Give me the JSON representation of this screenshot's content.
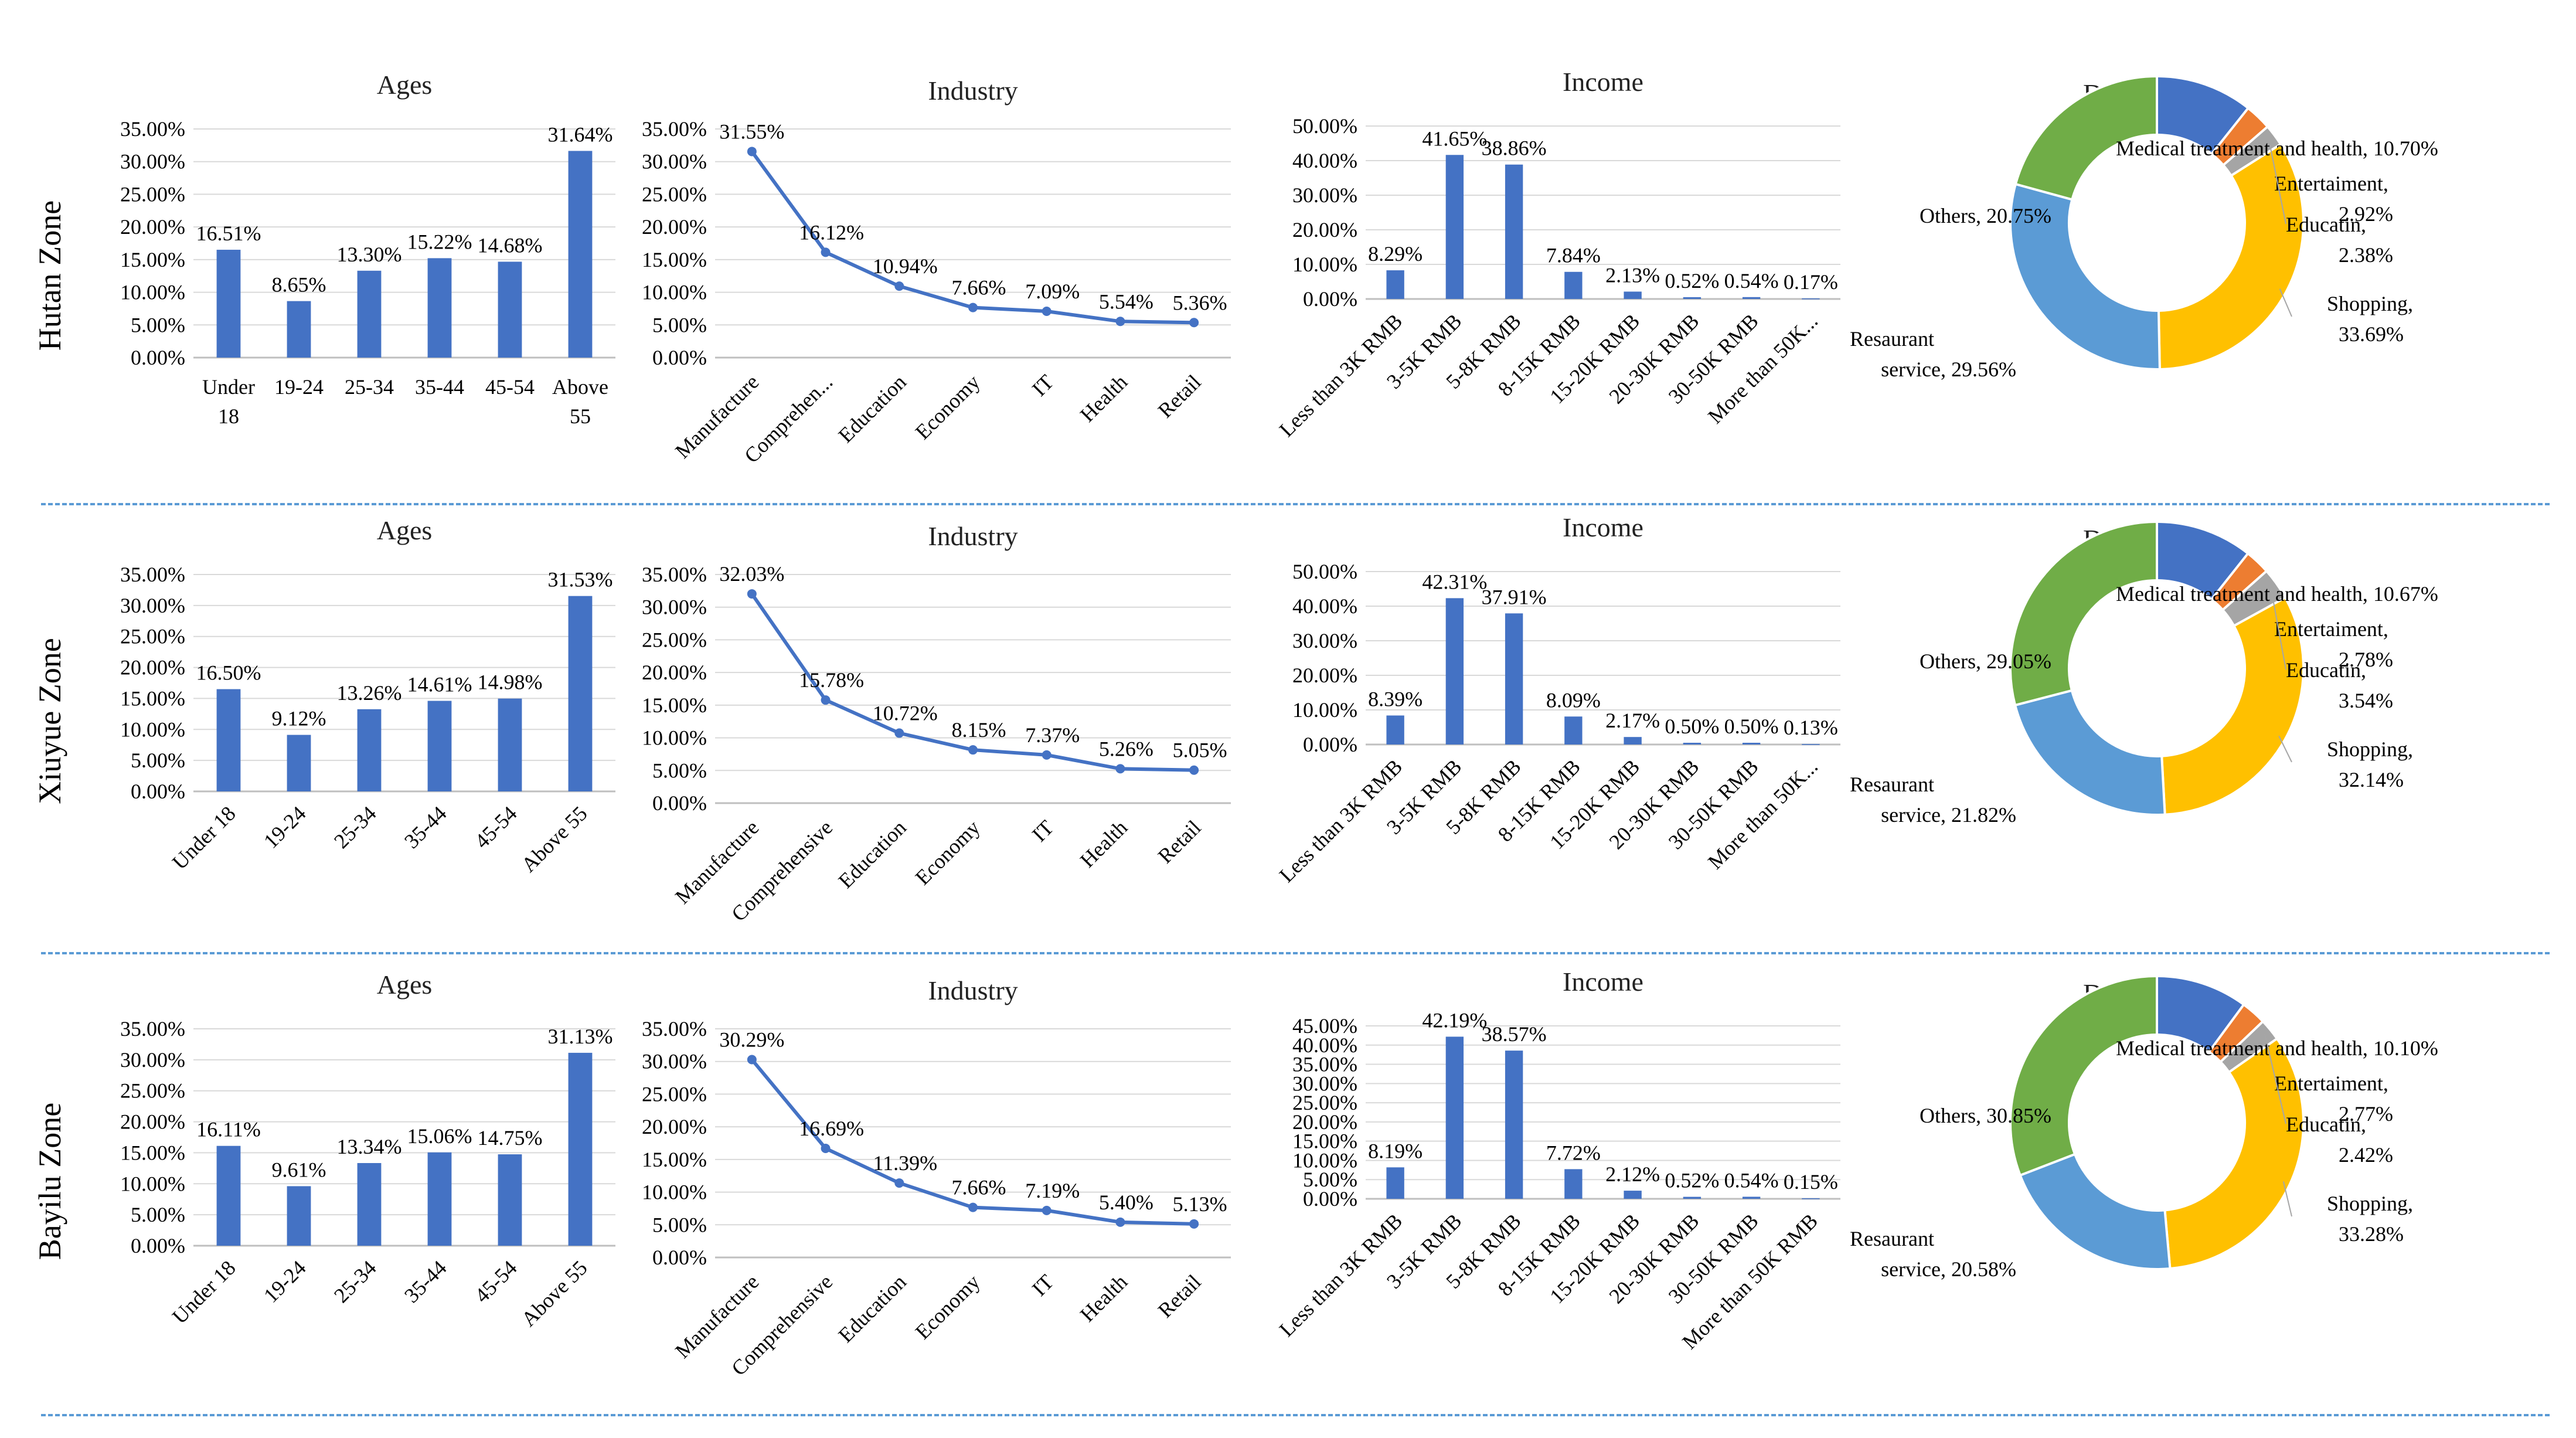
{
  "colors": {
    "bar": "#4472c4",
    "line": "#4472c4",
    "grid": "#d9d9d9",
    "axis": "#bfbfbf",
    "divider": "#5b9bd5",
    "pie": [
      "#4472c4",
      "#ed7d31",
      "#a5a5a5",
      "#ffc000",
      "#5b9bd5",
      "#70ad47"
    ]
  },
  "rows": [
    {
      "zone": "Hutan Zone",
      "charts": {
        "ages": {
          "type": "bar",
          "title": "Ages",
          "categories": [
            "Under 18",
            "19-24",
            "25-34",
            "35-44",
            "45-54",
            "Above 55"
          ],
          "values": [
            16.51,
            8.65,
            13.3,
            15.22,
            14.68,
            31.64
          ],
          "labels": [
            "16.51%",
            "8.65%",
            "13.30%",
            "15.22%",
            "14.68%",
            "31.64%"
          ],
          "ylim": [
            0,
            35
          ],
          "yticks": [
            "0.00%",
            "5.00%",
            "10.00%",
            "15.00%",
            "20.00%",
            "25.00%",
            "30.00%",
            "35.00%"
          ],
          "tick_style": "wrapped"
        },
        "industry": {
          "type": "line",
          "title": "Industry",
          "categories": [
            "Manufacture",
            "Comprehen...",
            "Education",
            "Economy",
            "IT",
            "Health",
            "Retail"
          ],
          "values": [
            31.55,
            16.12,
            10.94,
            7.66,
            7.09,
            5.54,
            5.36
          ],
          "labels": [
            "31.55%",
            "16.12%",
            "10.94%",
            "7.66%",
            "7.09%",
            "5.54%",
            "5.36%"
          ],
          "ylim": [
            0,
            35
          ],
          "yticks": [
            "0.00%",
            "5.00%",
            "10.00%",
            "15.00%",
            "20.00%",
            "25.00%",
            "30.00%",
            "35.00%"
          ]
        },
        "income": {
          "type": "bar",
          "title": "Income",
          "categories": [
            "Less than 3K RMB",
            "3-5K RMB",
            "5-8K RMB",
            "8-15K RMB",
            "15-20K RMB",
            "20-30K RMB",
            "30-50K RMB",
            "More than 50K..."
          ],
          "values": [
            8.29,
            41.65,
            38.86,
            7.84,
            2.13,
            0.52,
            0.54,
            0.17
          ],
          "labels": [
            "8.29%",
            "41.65%",
            "38.86%",
            "7.84%",
            "2.13%",
            "0.52%",
            "0.54%",
            "0.17%"
          ],
          "ylim": [
            0,
            50
          ],
          "yticks": [
            "0.00%",
            "10.00%",
            "20.00%",
            "30.00%",
            "40.00%",
            "50.00%"
          ]
        },
        "destination": {
          "type": "pie",
          "title": "Destination",
          "slices": [
            {
              "name": "Medical treatment and health",
              "value": 10.7,
              "label": "Medical treatment and health, 10.70%"
            },
            {
              "name": "Entertaiment",
              "value": 2.92,
              "label_line1": "Entertaiment,",
              "label_line2": "2.92%"
            },
            {
              "name": "Educatin",
              "value": 2.38,
              "label_line1": "Educatin,",
              "label_line2": "2.38%"
            },
            {
              "name": "Shopping",
              "value": 33.69,
              "label_line1": "Shopping,",
              "label_line2": "33.69%"
            },
            {
              "name": "Resaurant service",
              "value": 29.56,
              "label_line1": "Resaurant",
              "label_line2": "service, 29.56%"
            },
            {
              "name": "Others",
              "value": 20.75,
              "label": "Others, 20.75%"
            }
          ]
        }
      }
    },
    {
      "zone": "Xiuyue Zone",
      "charts": {
        "ages": {
          "type": "bar",
          "title": "Ages",
          "categories": [
            "Under 18",
            "19-24",
            "25-34",
            "35-44",
            "45-54",
            "Above 55"
          ],
          "values": [
            16.5,
            9.12,
            13.26,
            14.61,
            14.98,
            31.53
          ],
          "labels": [
            "16.50%",
            "9.12%",
            "13.26%",
            "14.61%",
            "14.98%",
            "31.53%"
          ],
          "ylim": [
            0,
            35
          ],
          "yticks": [
            "0.00%",
            "5.00%",
            "10.00%",
            "15.00%",
            "20.00%",
            "25.00%",
            "30.00%",
            "35.00%"
          ],
          "tick_style": "rotated"
        },
        "industry": {
          "type": "line",
          "title": "Industry",
          "categories": [
            "Manufacture",
            "Comprehensive",
            "Education",
            "Economy",
            "IT",
            "Health",
            "Retail"
          ],
          "values": [
            32.03,
            15.78,
            10.72,
            8.15,
            7.37,
            5.26,
            5.05
          ],
          "labels": [
            "32.03%",
            "15.78%",
            "10.72%",
            "8.15%",
            "7.37%",
            "5.26%",
            "5.05%"
          ],
          "ylim": [
            0,
            35
          ],
          "yticks": [
            "0.00%",
            "5.00%",
            "10.00%",
            "15.00%",
            "20.00%",
            "25.00%",
            "30.00%",
            "35.00%"
          ]
        },
        "income": {
          "type": "bar",
          "title": "Income",
          "categories": [
            "Less than 3K RMB",
            "3-5K RMB",
            "5-8K RMB",
            "8-15K RMB",
            "15-20K RMB",
            "20-30K RMB",
            "30-50K RMB",
            "More than 50K..."
          ],
          "values": [
            8.39,
            42.31,
            37.91,
            8.09,
            2.17,
            0.5,
            0.5,
            0.13
          ],
          "labels": [
            "8.39%",
            "42.31%",
            "37.91%",
            "8.09%",
            "2.17%",
            "0.50%",
            "0.50%",
            "0.13%"
          ],
          "ylim": [
            0,
            50
          ],
          "yticks": [
            "0.00%",
            "10.00%",
            "20.00%",
            "30.00%",
            "40.00%",
            "50.00%"
          ]
        },
        "destination": {
          "type": "pie",
          "title": "Destination",
          "slices": [
            {
              "name": "Medical treatment and health",
              "value": 10.67,
              "label": "Medical treatment and health, 10.67%"
            },
            {
              "name": "Entertaiment",
              "value": 2.78,
              "label_line1": "Entertaiment,",
              "label_line2": "2.78%"
            },
            {
              "name": "Educatin",
              "value": 3.54,
              "label_line1": "Educatin,",
              "label_line2": "3.54%"
            },
            {
              "name": "Shopping",
              "value": 32.14,
              "label_line1": "Shopping,",
              "label_line2": "32.14%"
            },
            {
              "name": "Resaurant service",
              "value": 21.82,
              "label_line1": "Resaurant",
              "label_line2": "service, 21.82%"
            },
            {
              "name": "Others",
              "value": 29.05,
              "label": "Others, 29.05%"
            }
          ]
        }
      }
    },
    {
      "zone": "Bayilu Zone",
      "charts": {
        "ages": {
          "type": "bar",
          "title": "Ages",
          "categories": [
            "Under 18",
            "19-24",
            "25-34",
            "35-44",
            "45-54",
            "Above 55"
          ],
          "values": [
            16.11,
            9.61,
            13.34,
            15.06,
            14.75,
            31.13
          ],
          "labels": [
            "16.11%",
            "9.61%",
            "13.34%",
            "15.06%",
            "14.75%",
            "31.13%"
          ],
          "ylim": [
            0,
            35
          ],
          "yticks": [
            "0.00%",
            "5.00%",
            "10.00%",
            "15.00%",
            "20.00%",
            "25.00%",
            "30.00%",
            "35.00%"
          ],
          "tick_style": "rotated"
        },
        "industry": {
          "type": "line",
          "title": "Industry",
          "categories": [
            "Manufacture",
            "Comprehensive",
            "Education",
            "Economy",
            "IT",
            "Health",
            "Retail"
          ],
          "values": [
            30.29,
            16.69,
            11.39,
            7.66,
            7.19,
            5.4,
            5.13
          ],
          "labels": [
            "30.29%",
            "16.69%",
            "11.39%",
            "7.66%",
            "7.19%",
            "5.40%",
            "5.13%"
          ],
          "ylim": [
            0,
            35
          ],
          "yticks": [
            "0.00%",
            "5.00%",
            "10.00%",
            "15.00%",
            "20.00%",
            "25.00%",
            "30.00%",
            "35.00%"
          ]
        },
        "income": {
          "type": "bar",
          "title": "Income",
          "categories": [
            "Less than 3K RMB",
            "3-5K RMB",
            "5-8K RMB",
            "8-15K RMB",
            "15-20K RMB",
            "20-30K RMB",
            "30-50K RMB",
            "More than 50K RMB"
          ],
          "values": [
            8.19,
            42.19,
            38.57,
            7.72,
            2.12,
            0.52,
            0.54,
            0.15
          ],
          "labels": [
            "8.19%",
            "42.19%",
            "38.57%",
            "7.72%",
            "2.12%",
            "0.52%",
            "0.54%",
            "0.15%"
          ],
          "ylim": [
            0,
            45
          ],
          "yticks": [
            "0.00%",
            "5.00%",
            "10.00%",
            "15.00%",
            "20.00%",
            "25.00%",
            "30.00%",
            "35.00%",
            "40.00%",
            "45.00%"
          ]
        },
        "destination": {
          "type": "pie",
          "title": "Destination",
          "slices": [
            {
              "name": "Medical treatment and health",
              "value": 10.1,
              "label": "Medical treatment and health, 10.10%"
            },
            {
              "name": "Entertaiment",
              "value": 2.77,
              "label_line1": "Entertaiment,",
              "label_line2": "2.77%"
            },
            {
              "name": "Educatin",
              "value": 2.42,
              "label_line1": "Educatin,",
              "label_line2": "2.42%"
            },
            {
              "name": "Shopping",
              "value": 33.28,
              "label_line1": "Shopping,",
              "label_line2": "33.28%"
            },
            {
              "name": "Resaurant service",
              "value": 20.58,
              "label_line1": "Resaurant",
              "label_line2": "service, 20.58%"
            },
            {
              "name": "Others",
              "value": 30.85,
              "label": "Others, 30.85%"
            }
          ]
        }
      }
    }
  ]
}
